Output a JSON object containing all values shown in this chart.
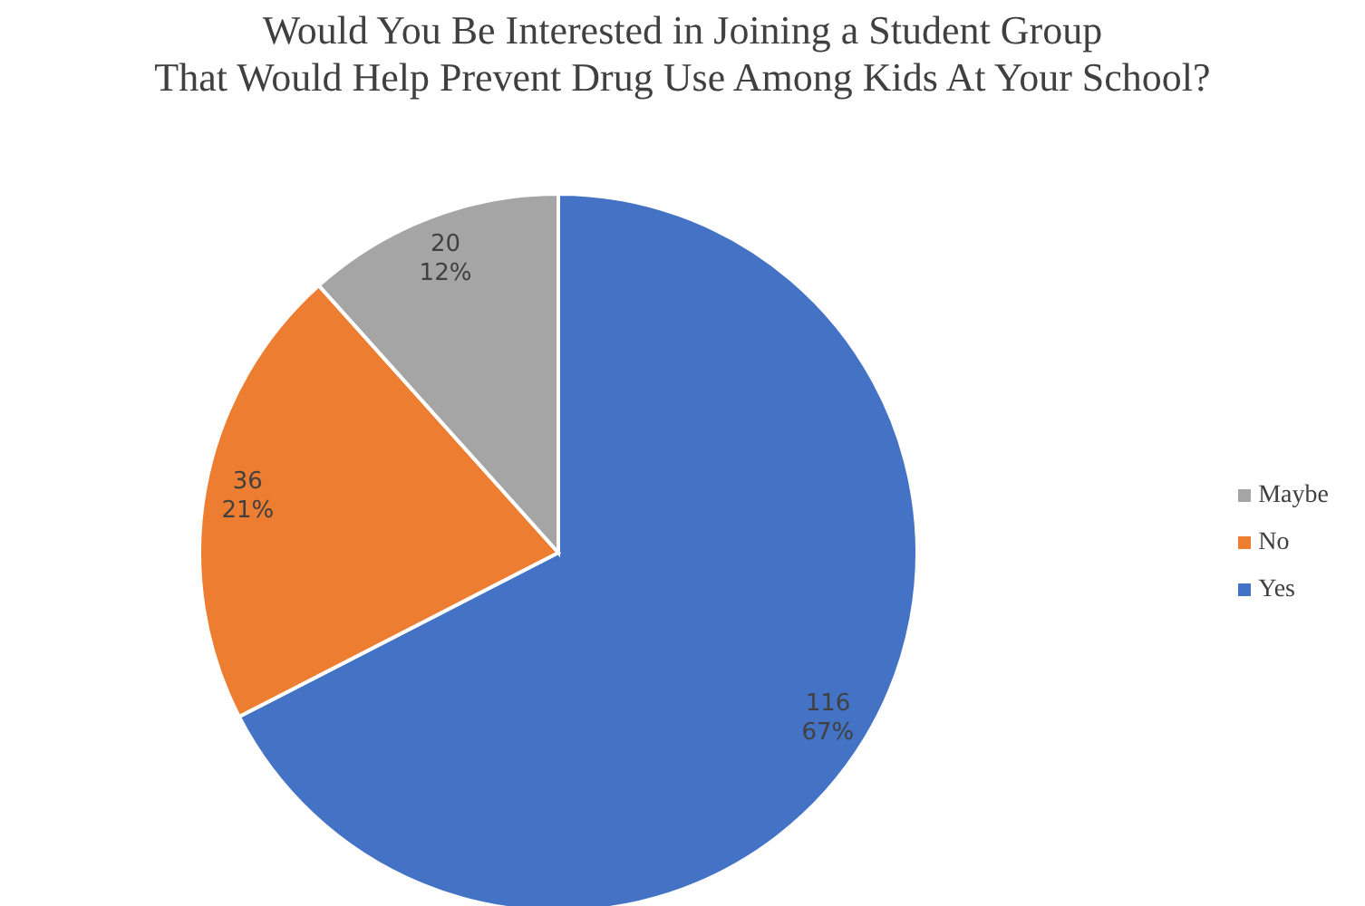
{
  "chart_data": {
    "type": "pie",
    "title": "Would You Be Interested in Joining a Student Group\nThat Would Help Prevent Drug Use Among Kids At Your School?",
    "categories": [
      "Yes",
      "No",
      "Maybe"
    ],
    "values": [
      116,
      36,
      20
    ],
    "colors": [
      "#4472c4",
      "#ed7d31",
      "#a5a5a5"
    ],
    "value_labels": [
      "116 67%",
      "36 21%",
      "20 12%"
    ],
    "legend": "right"
  }
}
